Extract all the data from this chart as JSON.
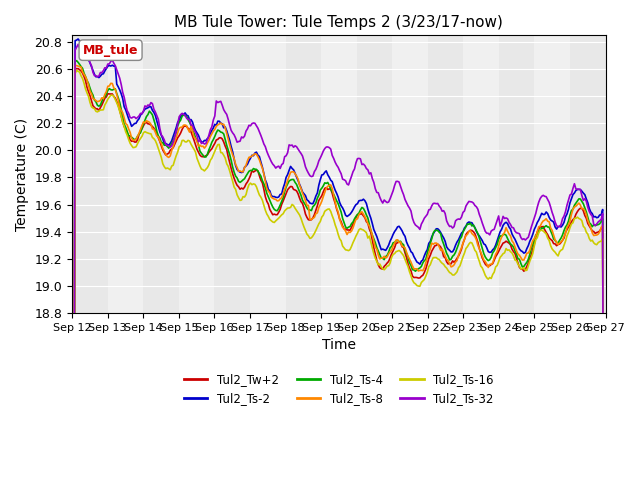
{
  "title": "MB Tule Tower: Tule Temps 2 (3/23/17-now)",
  "xlabel": "Time",
  "ylabel": "Temperature (C)",
  "ylim": [
    18.8,
    20.85
  ],
  "yticks": [
    18.8,
    19.0,
    19.2,
    19.4,
    19.6,
    19.8,
    20.0,
    20.2,
    20.4,
    20.6,
    20.8
  ],
  "xtick_labels": [
    "Sep 12",
    "Sep 13",
    "Sep 14",
    "Sep 15",
    "Sep 16",
    "Sep 17",
    "Sep 18",
    "Sep 19",
    "Sep 20",
    "Sep 21",
    "Sep 22",
    "Sep 23",
    "Sep 24",
    "Sep 25",
    "Sep 26",
    "Sep 27"
  ],
  "series_colors": [
    "#cc0000",
    "#0000cc",
    "#00aa00",
    "#ff8800",
    "#cccc00",
    "#9900cc"
  ],
  "series_names": [
    "Tul2_Tw+2",
    "Tul2_Ts-2",
    "Tul2_Ts-4",
    "Tul2_Ts-8",
    "Tul2_Ts-16",
    "Tul2_Ts-32"
  ],
  "legend_label": "MB_tule",
  "legend_label_color": "#cc0000",
  "background_color": "#ffffff",
  "grid_color": "#dddddd"
}
